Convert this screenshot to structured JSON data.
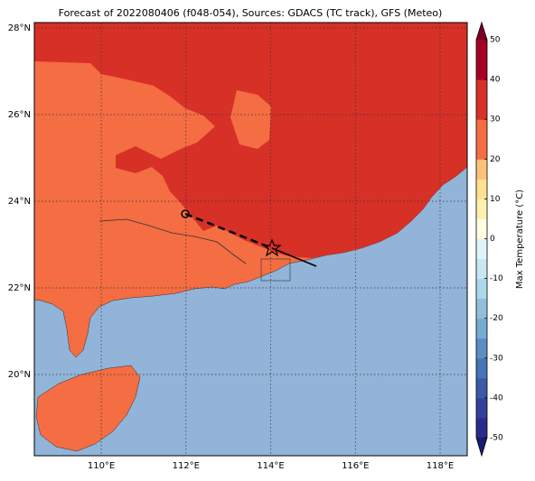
{
  "chart_data": {
    "type": "map",
    "title": "Forecast of 2022080406 (f048-054), Sources: GDACS (TC track), GFS (Meteo)",
    "xlim": [
      108.42,
      118.64
    ],
    "ylim": [
      18.125,
      28.125
    ],
    "xticks": [
      {
        "value": 110,
        "label": "110°E"
      },
      {
        "value": 112,
        "label": "112°E"
      },
      {
        "value": 114,
        "label": "114°E"
      },
      {
        "value": 116,
        "label": "116°E"
      },
      {
        "value": 118,
        "label": "118°E"
      }
    ],
    "yticks": [
      {
        "value": 20,
        "label": "20°N"
      },
      {
        "value": 22,
        "label": "22°N"
      },
      {
        "value": 24,
        "label": "24°N"
      },
      {
        "value": 26,
        "label": "26°N"
      },
      {
        "value": 28,
        "label": "28°N"
      }
    ],
    "grid": true,
    "colorbar": {
      "label": "Max Temperature (°C)",
      "clim": [
        -50,
        50
      ],
      "ticks": [
        -50,
        -40,
        -30,
        -20,
        -10,
        0,
        10,
        20,
        30,
        40,
        50
      ],
      "colors": [
        "#2a2a8c",
        "#33409c",
        "#3b5aa8",
        "#4575b4",
        "#5b8ec2",
        "#74add1",
        "#91bfdb",
        "#abd9e9",
        "#c8e7f0",
        "#e0f3f8",
        "#ffffe0",
        "#fff0b0",
        "#fee090",
        "#fdc27a",
        "#f46d43",
        "#f46d43",
        "#d73027",
        "#d73027",
        "#a50026",
        "#a50026"
      ],
      "under_color": "#1a1a6e",
      "over_color": "#7a0025"
    }
  }
}
